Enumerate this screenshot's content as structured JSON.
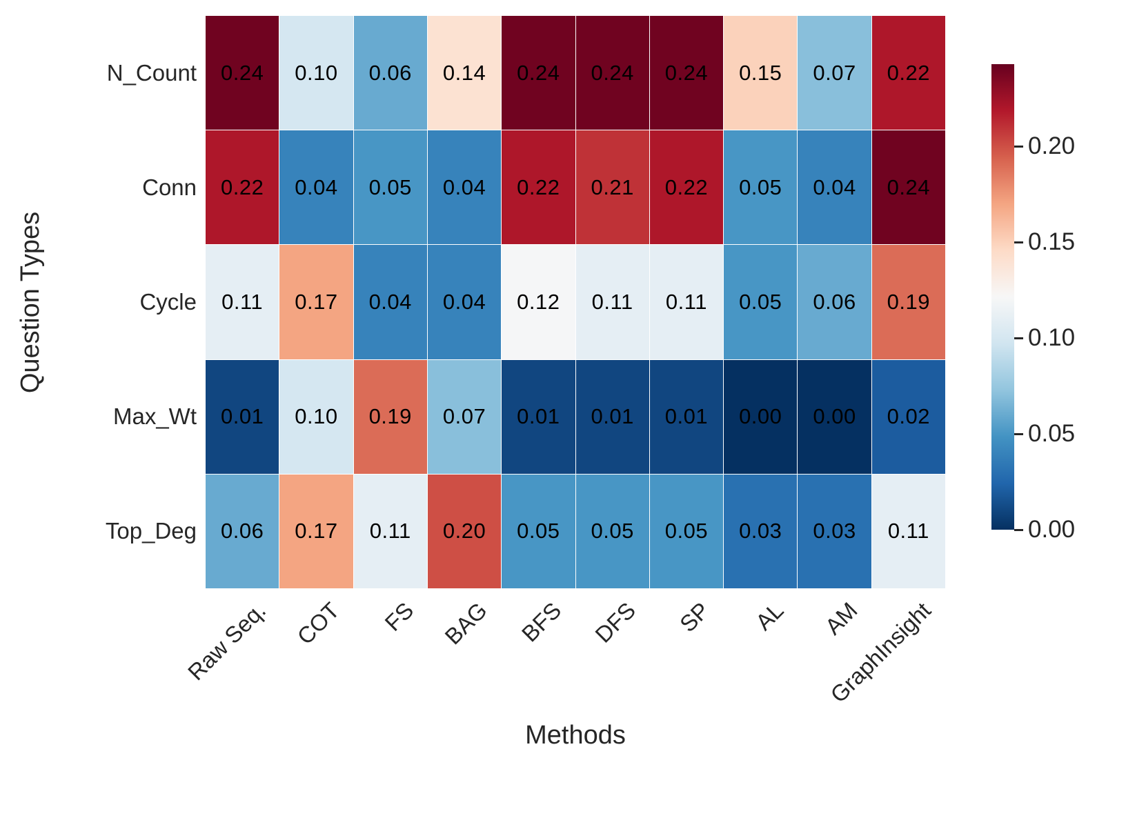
{
  "figure": {
    "background": "#ffffff"
  },
  "colors": {
    "annotation_text": "#000000",
    "tick_label": "#262626",
    "axis_title": "#262626",
    "cell_grid_line": "#ffffff"
  },
  "chart_data": {
    "type": "heatmap",
    "title": "",
    "xlabel": "Methods",
    "ylabel": "Question Types",
    "columns": [
      "Raw Seq.",
      "COT",
      "FS",
      "BAG",
      "BFS",
      "DFS",
      "SP",
      "AL",
      "AM",
      "GraphInsight"
    ],
    "rows": [
      "N_Count",
      "Conn",
      "Cycle",
      "Max_Wt",
      "Top_Deg"
    ],
    "values": [
      [
        0.24,
        0.1,
        0.06,
        0.14,
        0.24,
        0.24,
        0.24,
        0.15,
        0.07,
        0.22
      ],
      [
        0.22,
        0.04,
        0.05,
        0.04,
        0.22,
        0.21,
        0.22,
        0.05,
        0.04,
        0.24
      ],
      [
        0.11,
        0.17,
        0.04,
        0.04,
        0.12,
        0.11,
        0.11,
        0.05,
        0.06,
        0.19
      ],
      [
        0.01,
        0.1,
        0.19,
        0.07,
        0.01,
        0.01,
        0.01,
        0.0,
        0.0,
        0.02
      ],
      [
        0.06,
        0.17,
        0.11,
        0.2,
        0.05,
        0.05,
        0.05,
        0.03,
        0.03,
        0.11
      ]
    ],
    "annotation_decimals": 2,
    "vmin": 0.0,
    "vmax": 0.243,
    "colormap_name": "RdBu_r",
    "colormap_stops": [
      "#053061",
      "#2166ac",
      "#4393c3",
      "#92c5de",
      "#d1e5f0",
      "#f7f7f7",
      "#fddbc7",
      "#f4a582",
      "#d6604d",
      "#b2182b",
      "#67001f"
    ],
    "colorbar": {
      "tick_labels": [
        "0.00",
        "0.05",
        "0.10",
        "0.15",
        "0.20"
      ],
      "tick_values": [
        0.0,
        0.05,
        0.1,
        0.15,
        0.2
      ],
      "position": "right",
      "orientation": "vertical"
    },
    "grid_on": false,
    "legend": "none"
  }
}
